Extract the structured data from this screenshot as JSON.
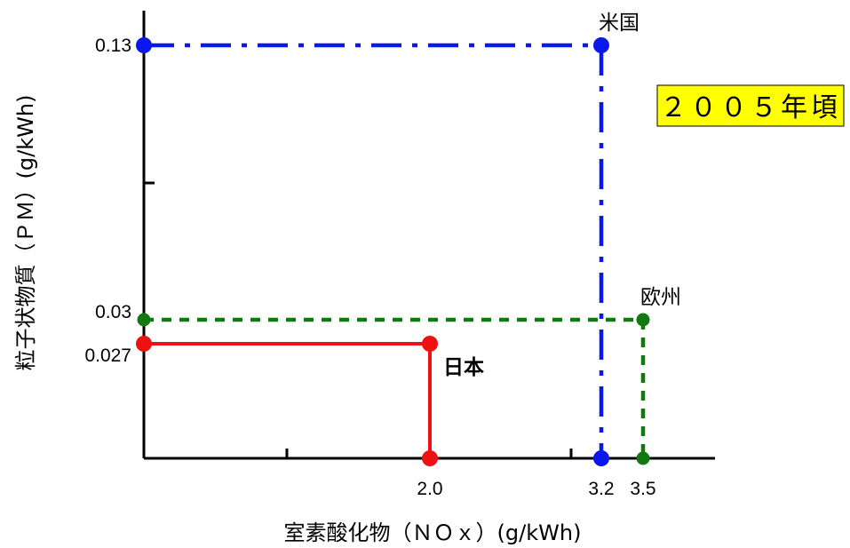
{
  "chart_data": {
    "type": "line",
    "title": "",
    "xlabel": "室素酸化物（ＮＯｘ）(g/kWh)",
    "ylabel": "粒子状物質（ＰＭ）(g/kWh)",
    "annotation": "２００５年頃",
    "colors": {
      "米国": "#0a18ee",
      "欧州": "#127812",
      "日本": "#ee1111",
      "axis": "#000000",
      "badge_bg": "#ffff00"
    },
    "x_ticks": [
      {
        "value": 2.0,
        "label": "2.0"
      },
      {
        "value": 3.2,
        "label": "3.2"
      },
      {
        "value": 3.5,
        "label": "3.5"
      }
    ],
    "y_ticks": [
      {
        "value": 0.13,
        "label": "0.13"
      },
      {
        "value": 0.03,
        "label": "0.03"
      },
      {
        "value": 0.027,
        "label": "0.027"
      }
    ],
    "series": [
      {
        "name": "米国",
        "nox": 3.2,
        "pm": 0.13,
        "style": "dashdot"
      },
      {
        "name": "欧州",
        "nox": 3.5,
        "pm": 0.03,
        "style": "dotted"
      },
      {
        "name": "日本",
        "nox": 2.0,
        "pm": 0.027,
        "style": "solid",
        "bold": true
      }
    ]
  }
}
